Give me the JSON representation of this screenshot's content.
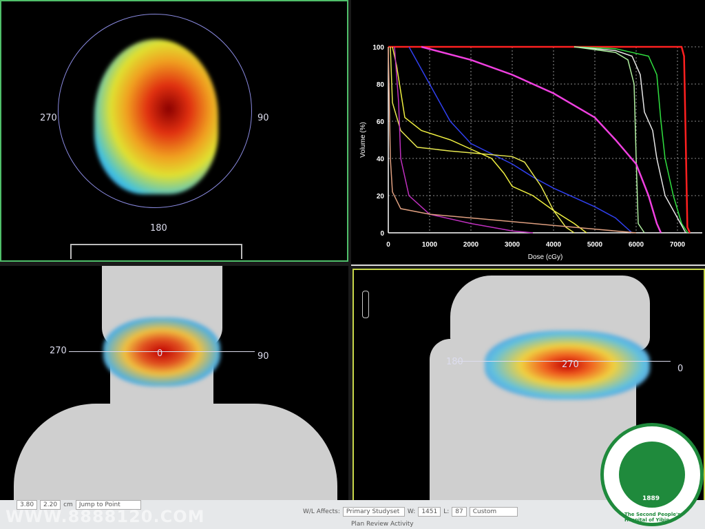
{
  "viewers": {
    "axial": {
      "left": "270",
      "right": "90",
      "bottom": "180"
    },
    "coronal": {
      "left": "270",
      "right": "90",
      "center": "0"
    },
    "sagittal": {
      "left": "180",
      "right": "0",
      "center": "270"
    }
  },
  "chart_data": {
    "type": "line",
    "xlabel": "Dose (cGy)",
    "ylabel": "Volume (%)",
    "xlim": [
      0,
      7600
    ],
    "ylim": [
      0,
      100
    ],
    "xticks": [
      0,
      1000,
      2000,
      3000,
      4000,
      5000,
      6000,
      7000
    ],
    "yticks": [
      0,
      20,
      40,
      60,
      80,
      100
    ],
    "grid": true,
    "series": [
      {
        "color": "#ff2020",
        "points": [
          [
            0,
            100
          ],
          [
            7100,
            100
          ],
          [
            7160,
            95
          ],
          [
            7200,
            50
          ],
          [
            7240,
            3
          ],
          [
            7300,
            0
          ]
        ]
      },
      {
        "color": "#30e040",
        "points": [
          [
            4500,
            100
          ],
          [
            5500,
            99
          ],
          [
            6300,
            95
          ],
          [
            6500,
            85
          ],
          [
            6600,
            60
          ],
          [
            6700,
            40
          ],
          [
            6900,
            20
          ],
          [
            7100,
            5
          ],
          [
            7250,
            0
          ]
        ]
      },
      {
        "color": "#e8e8e8",
        "points": [
          [
            4500,
            100
          ],
          [
            5500,
            98
          ],
          [
            5900,
            95
          ],
          [
            6100,
            85
          ],
          [
            6200,
            65
          ],
          [
            6400,
            55
          ],
          [
            6500,
            40
          ],
          [
            6700,
            20
          ],
          [
            7000,
            8
          ],
          [
            7200,
            0
          ]
        ]
      },
      {
        "color": "#b0f0a0",
        "points": [
          [
            4500,
            100
          ],
          [
            5500,
            97
          ],
          [
            5800,
            93
          ],
          [
            5950,
            80
          ],
          [
            6000,
            40
          ],
          [
            6050,
            5
          ],
          [
            6200,
            0
          ]
        ]
      },
      {
        "color": "#f040e0",
        "points": [
          [
            800,
            100
          ],
          [
            2000,
            93
          ],
          [
            3000,
            85
          ],
          [
            4000,
            75
          ],
          [
            5000,
            62
          ],
          [
            5500,
            50
          ],
          [
            6000,
            37
          ],
          [
            6300,
            20
          ],
          [
            6500,
            5
          ],
          [
            6600,
            0
          ]
        ]
      },
      {
        "color": "#3040f0",
        "points": [
          [
            500,
            100
          ],
          [
            1000,
            80
          ],
          [
            1500,
            60
          ],
          [
            2000,
            48
          ],
          [
            3000,
            37
          ],
          [
            3500,
            30
          ],
          [
            4000,
            24
          ],
          [
            5000,
            14
          ],
          [
            5500,
            8
          ],
          [
            5900,
            0
          ]
        ]
      },
      {
        "color": "#f0f040",
        "points": [
          [
            100,
            100
          ],
          [
            200,
            90
          ],
          [
            400,
            62
          ],
          [
            800,
            55
          ],
          [
            1500,
            50
          ],
          [
            2000,
            45
          ],
          [
            2500,
            40
          ],
          [
            2800,
            32
          ],
          [
            3000,
            25
          ],
          [
            3500,
            20
          ],
          [
            4000,
            12
          ],
          [
            4500,
            5
          ],
          [
            4800,
            0
          ]
        ]
      },
      {
        "color": "#e8e850",
        "points": [
          [
            50,
            100
          ],
          [
            100,
            70
          ],
          [
            300,
            55
          ],
          [
            700,
            46
          ],
          [
            1500,
            44
          ],
          [
            2000,
            43
          ],
          [
            3000,
            41
          ],
          [
            3300,
            38
          ],
          [
            3700,
            25
          ],
          [
            4000,
            12
          ],
          [
            4300,
            3
          ],
          [
            4500,
            0
          ]
        ]
      },
      {
        "color": "#c030c0",
        "points": [
          [
            150,
            100
          ],
          [
            250,
            70
          ],
          [
            300,
            40
          ],
          [
            500,
            20
          ],
          [
            1000,
            10
          ],
          [
            2000,
            5
          ],
          [
            3000,
            1
          ],
          [
            3500,
            0
          ]
        ]
      },
      {
        "color": "#e0a080",
        "points": [
          [
            0,
            100
          ],
          [
            50,
            40
          ],
          [
            100,
            22
          ],
          [
            300,
            13
          ],
          [
            1000,
            10
          ],
          [
            2000,
            8
          ],
          [
            3000,
            6
          ],
          [
            4000,
            4
          ],
          [
            5000,
            2
          ],
          [
            6000,
            0
          ]
        ]
      }
    ]
  },
  "toolbar": {
    "value1": "3.80",
    "value2": "2.20",
    "unit": "cm",
    "jump": "Jump to Point",
    "wl_affects": "W/L Affects:",
    "studyset": "Primary Studyset",
    "w_label": "W:",
    "w_value": "1451",
    "l_label": "L:",
    "l_value": "87",
    "preset": "Custom",
    "activity": "Plan Review Activity"
  },
  "watermark": "WWW.8888120.COM",
  "logo": {
    "name": "The Second People's Hospital of Yibin",
    "year": "1889"
  }
}
